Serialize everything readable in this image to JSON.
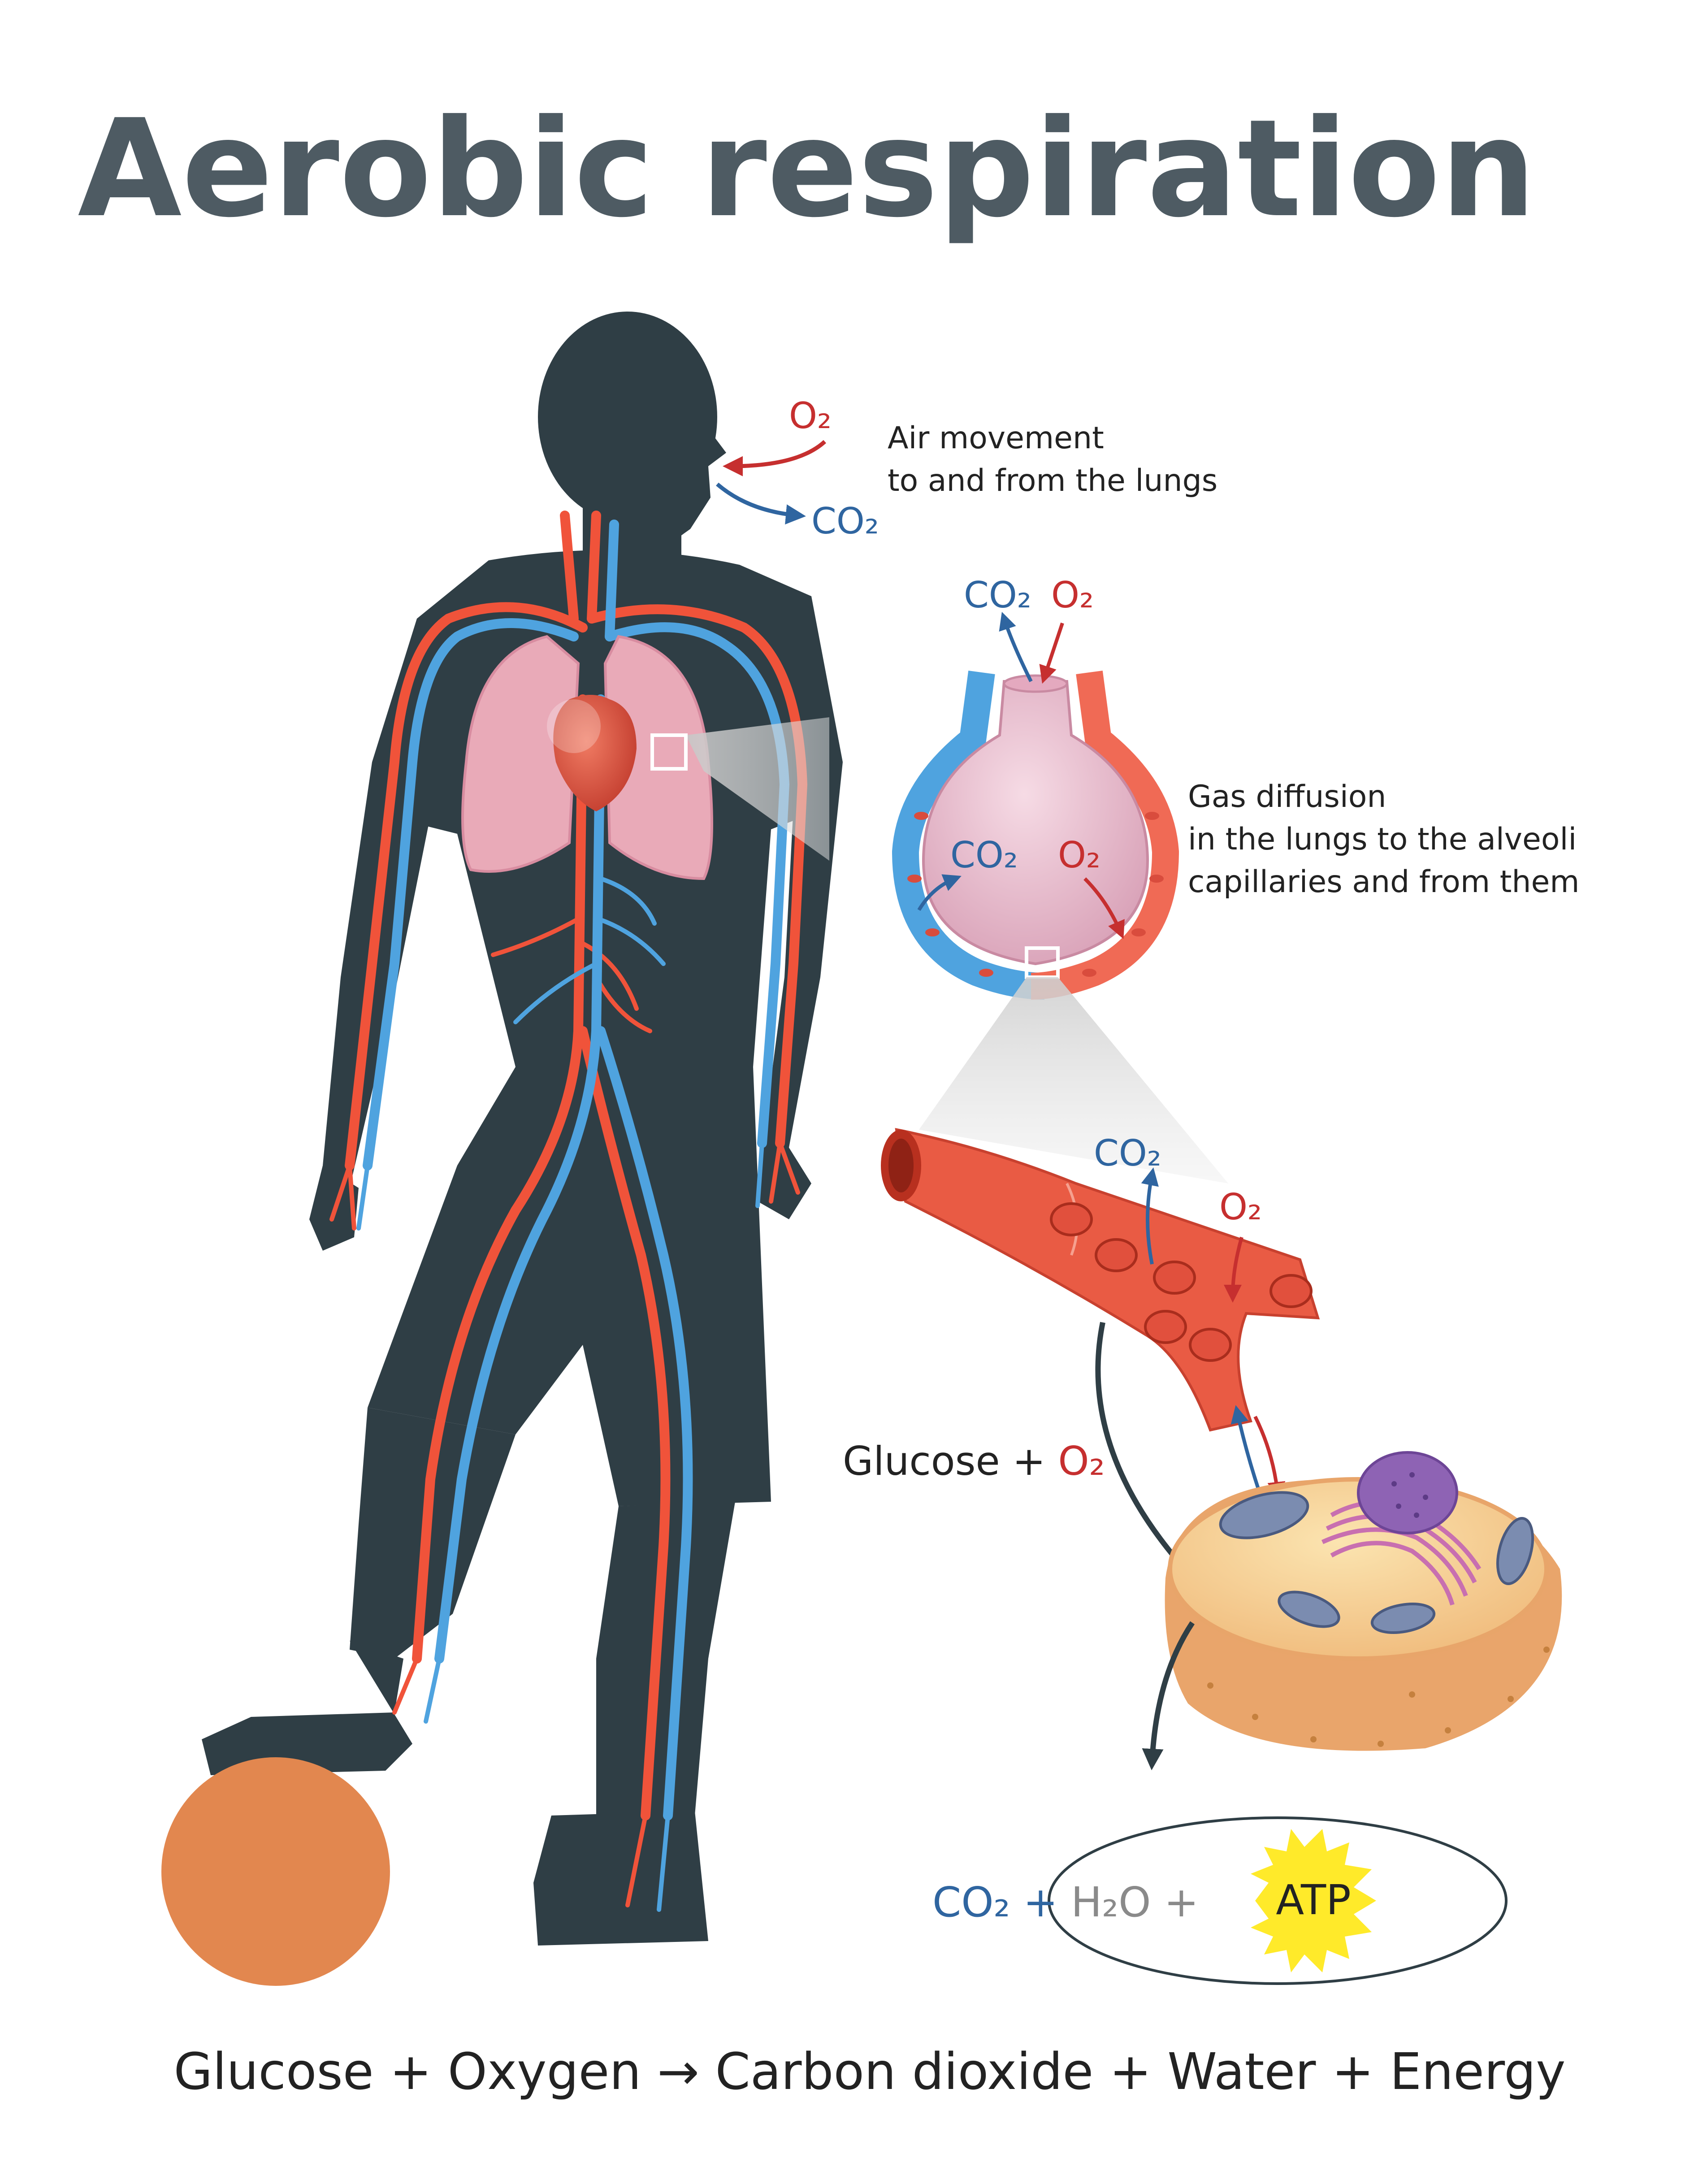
{
  "title": "Aerobic respiration",
  "colors": {
    "title": "#4e5b63",
    "silhouette": "#2f3e45",
    "artery": "#f0533a",
    "vein": "#4fa3df",
    "oxygen": "#c62f2f",
    "carbon_dioxide": "#2f65a0",
    "water": "#8a8a8a",
    "lung": "#e9aab8",
    "alveolus": "#e7b6c6",
    "cell": "#f2c48a",
    "cell_edge": "#e8a56a",
    "mitochondria": "#7b8cb0",
    "nucleus": "#8e63b4",
    "er": "#c86fb0",
    "atp_star": "#ffea2a",
    "ball": "#e2874f",
    "text": "#222222"
  },
  "labels": {
    "mouth_o2": "O₂",
    "mouth_co2": "CO₂",
    "air_movement_line1": "Air movement",
    "air_movement_line2": "to and from the lungs",
    "alveolus_top_co2": "CO₂",
    "alveolus_top_o2": "O₂",
    "alveolus_inner_co2": "CO₂",
    "alveolus_inner_o2": "O₂",
    "gas_diffusion_line1": "Gas diffusion",
    "gas_diffusion_line2": "in the lungs to the alveoli",
    "gas_diffusion_line3": "capillaries and from them",
    "capillary_co2": "CO₂",
    "capillary_o2": "O₂",
    "glucose_plus": "Glucose + ",
    "glucose_o2": "O₂"
  },
  "products": {
    "co2": "CO₂",
    "plus1": " + ",
    "h2o": "H₂O",
    "plus2": " + ",
    "atp": "ATP"
  },
  "equation": "Glucose + Oxygen → Carbon dioxide + Water + Energy",
  "icons": {
    "person": "person-silhouette-icon",
    "lungs": "lungs-icon",
    "heart": "heart-icon",
    "alveolus": "alveolus-icon",
    "capillary": "capillary-icon",
    "cell": "cell-icon",
    "atp": "atp-star-icon",
    "ball": "ball-icon"
  }
}
